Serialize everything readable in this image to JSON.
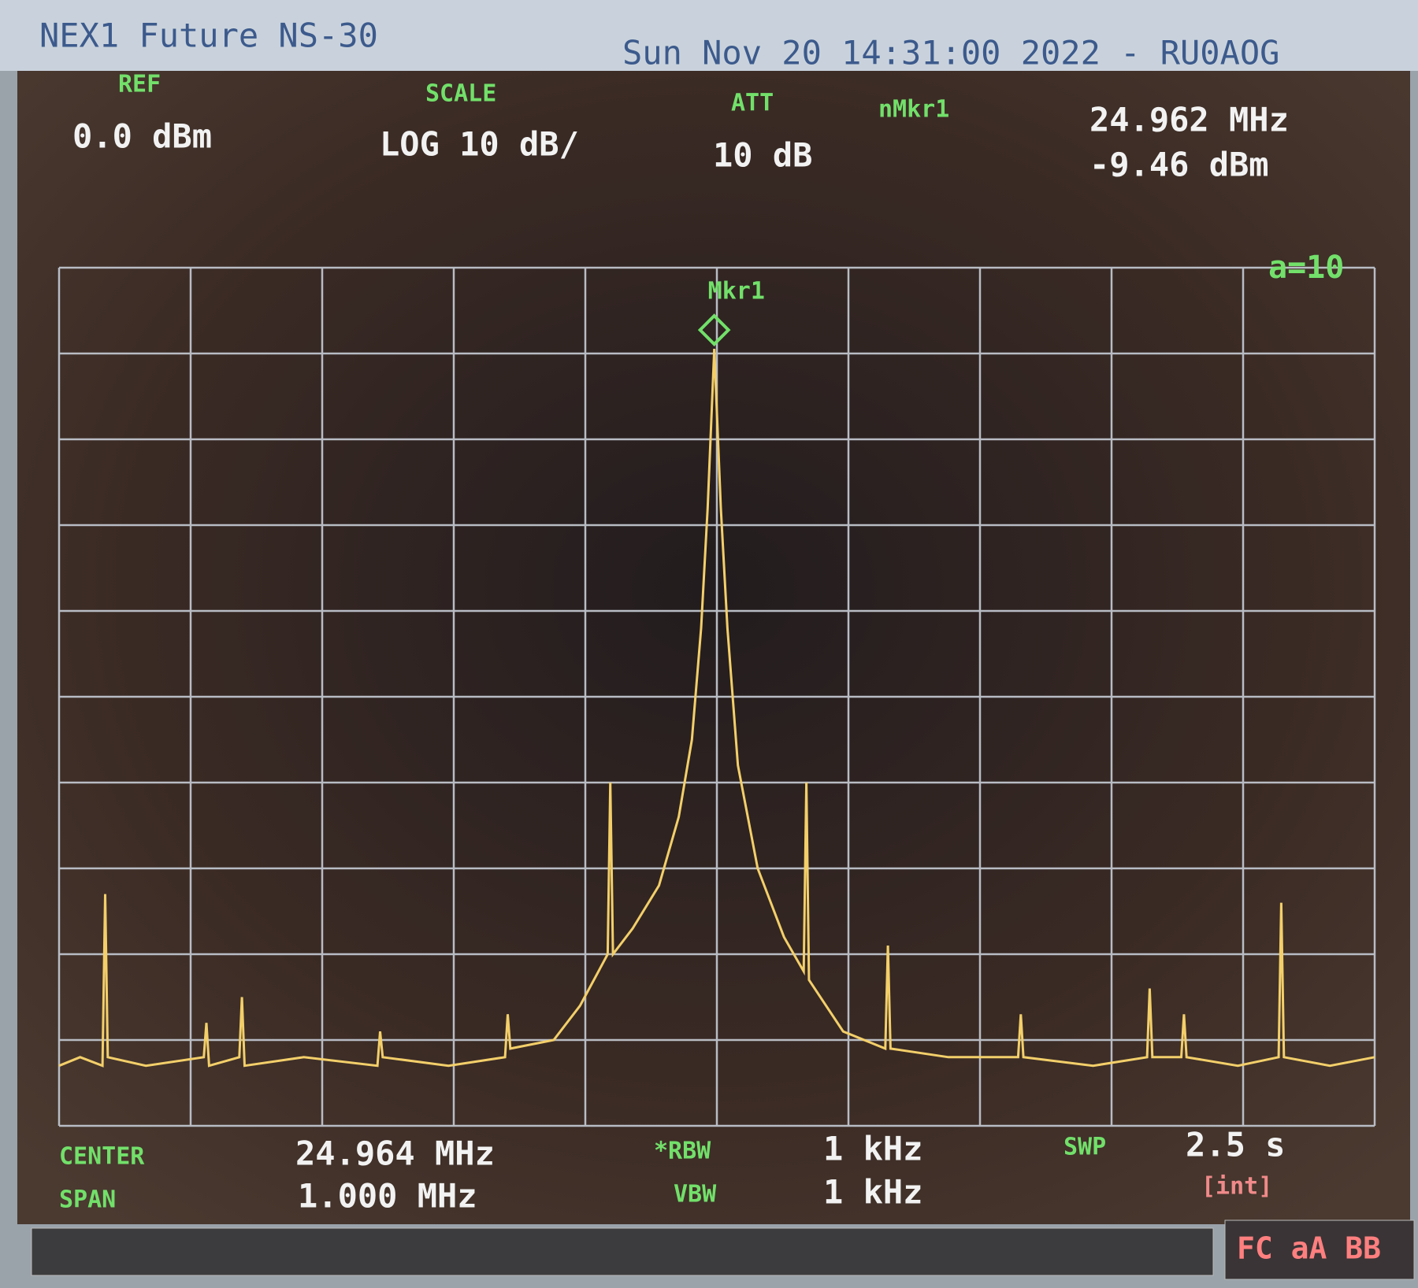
{
  "header": {
    "instrument": "NEX1 Future NS-30",
    "datetime": "Sun Nov 20 14:31:00 2022 - RU0AOG"
  },
  "readouts": {
    "ref_label": "REF",
    "ref_value": "0.0 dBm",
    "scale_label": "SCALE",
    "scale_value": "LOG 10 dB/",
    "att_label": "ATT",
    "att_value": "10 dB",
    "marker_label": "nMkr1",
    "marker_freq": "24.962 MHz",
    "marker_level": "-9.46 dBm",
    "center_label": "CENTER",
    "center_value": "24.964 MHz",
    "span_label": "SPAN",
    "span_value": "1.000 MHz",
    "rbw_label": "*RBW",
    "rbw_value": "1 kHz",
    "vbw_label": "VBW",
    "vbw_value": "1 kHz",
    "swp_label": "SWP",
    "swp_value": "2.5 s",
    "swp_mode": "[int]",
    "status": "FC aA BB"
  },
  "chart_data": {
    "type": "line",
    "annotations": [
      "Mkr1",
      "a=10"
    ],
    "x": [
      24.464,
      24.48,
      24.497,
      24.499,
      24.501,
      24.53,
      24.574,
      24.576,
      24.578,
      24.601,
      24.603,
      24.605,
      24.65,
      24.706,
      24.708,
      24.71,
      24.76,
      24.803,
      24.805,
      24.807,
      24.84,
      24.86,
      24.881,
      24.883,
      24.885,
      24.9,
      24.92,
      24.935,
      24.945,
      24.952,
      24.957,
      24.962,
      24.967,
      24.972,
      24.98,
      24.995,
      25.015,
      25.03,
      25.032,
      25.034,
      25.06,
      25.092,
      25.094,
      25.096,
      25.14,
      25.193,
      25.195,
      25.197,
      25.25,
      25.291,
      25.293,
      25.295,
      25.317,
      25.319,
      25.321,
      25.36,
      25.391,
      25.393,
      25.395,
      25.43,
      25.464
    ],
    "values": [
      -93,
      -92,
      -93,
      -73,
      -92,
      -93,
      -92,
      -88,
      -93,
      -92,
      -85,
      -93,
      -92,
      -93,
      -89,
      -92,
      -93,
      -92,
      -87,
      -91,
      -90,
      -86,
      -80,
      -60,
      -80,
      -77,
      -72,
      -64,
      -55,
      -42,
      -28,
      -9.46,
      -28,
      -42,
      -58,
      -70,
      -78,
      -82,
      -60,
      -83,
      -89,
      -91,
      -79,
      -91,
      -92,
      -92,
      -87,
      -92,
      -93,
      -92,
      -84,
      -92,
      -92,
      -87,
      -92,
      -93,
      -92,
      -74,
      -92,
      -93,
      -92
    ],
    "color": "#f3cf6a",
    "xlim": [
      24.464,
      25.464
    ],
    "ylim": [
      -100,
      0
    ],
    "xticks": [
      24.464,
      24.564,
      24.664,
      24.764,
      24.864,
      24.964,
      25.064,
      25.164,
      25.264,
      25.364,
      25.464
    ],
    "yticks": [
      -100,
      -90,
      -80,
      -70,
      -60,
      -50,
      -40,
      -30,
      -20,
      -10,
      0
    ],
    "grid": true
  }
}
